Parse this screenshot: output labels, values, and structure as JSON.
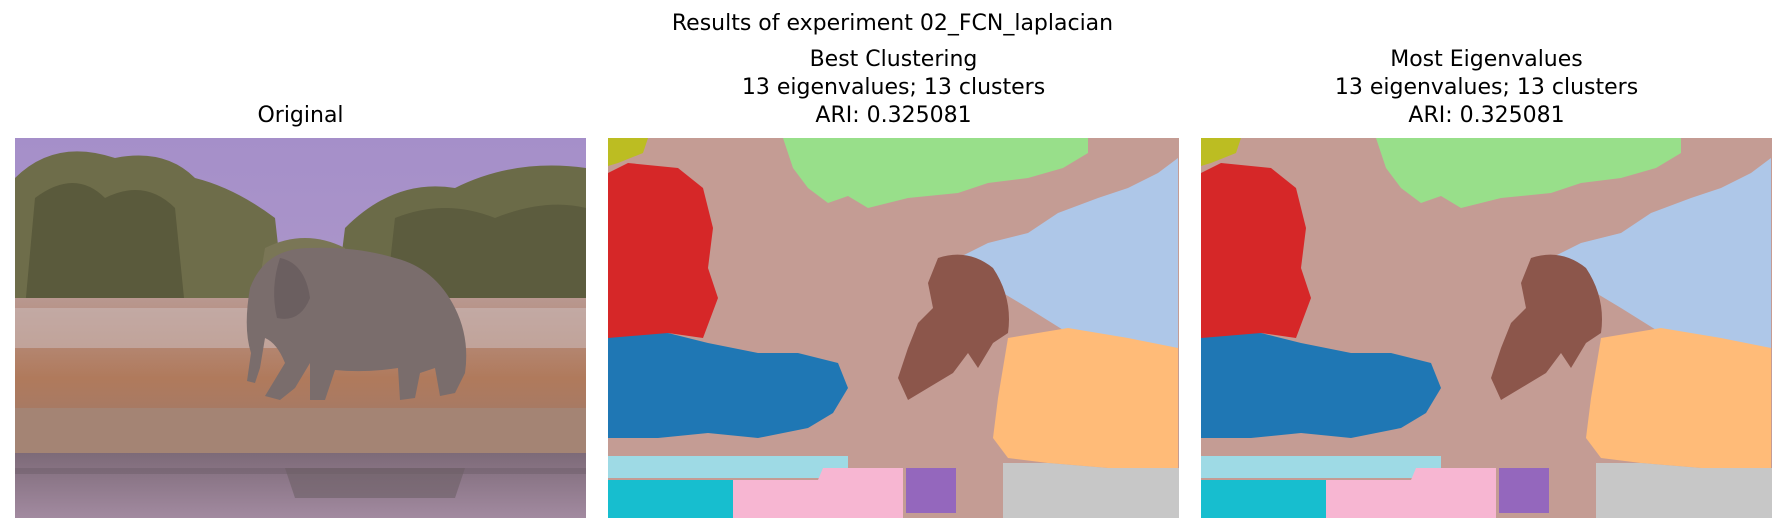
{
  "figure": {
    "suptitle": "Results of experiment 02_FCN_laplacian"
  },
  "panels": [
    {
      "id": "original",
      "title_lines": [
        "Original"
      ]
    },
    {
      "id": "best",
      "title_lines": [
        "Best Clustering",
        "13 eigenvalues; 13 clusters",
        "ARI: 0.325081"
      ]
    },
    {
      "id": "most",
      "title_lines": [
        "Most Eigenvalues",
        "13 eigenvalues; 13 clusters",
        "ARI: 0.325081"
      ]
    }
  ],
  "palette": {
    "sky": "#a08cc0",
    "tan": "#c49c94",
    "green": "#98df8a",
    "lightblue": "#aec7e8",
    "red": "#d62728",
    "blue": "#1f77b4",
    "brown": "#8c564b",
    "orange": "#ffbb78",
    "cyan_light": "#9edae5",
    "cyan": "#17becf",
    "pink": "#f7b6d2",
    "purple": "#9467bd",
    "gray": "#c7c7c7",
    "olive": "#bcbd22"
  }
}
